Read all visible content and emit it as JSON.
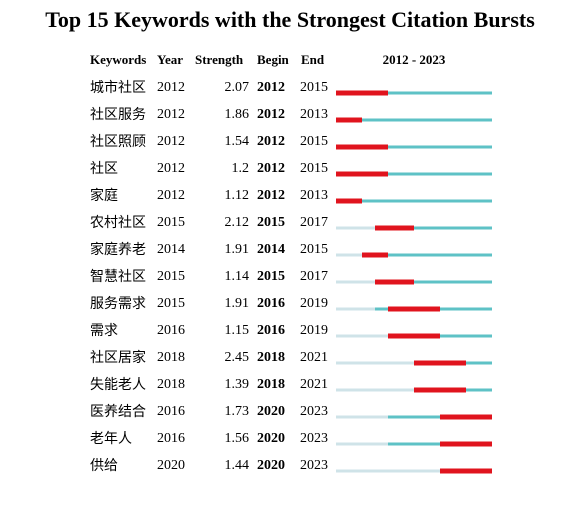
{
  "title": "Top 15 Keywords with the Strongest Citation Bursts",
  "columns": [
    "Keywords",
    "Year",
    "Strength",
    "Begin",
    "End"
  ],
  "timeline": {
    "label": "2012 - 2023",
    "xlim": [
      2012,
      2023
    ]
  },
  "rows": [
    {
      "keyword": "城市社区",
      "year": 2012,
      "strength": 2.07,
      "begin": 2012,
      "end": 2015
    },
    {
      "keyword": "社区服务",
      "year": 2012,
      "strength": 1.86,
      "begin": 2012,
      "end": 2013
    },
    {
      "keyword": "社区照顾",
      "year": 2012,
      "strength": 1.54,
      "begin": 2012,
      "end": 2015
    },
    {
      "keyword": "社区",
      "year": 2012,
      "strength": 1.2,
      "begin": 2012,
      "end": 2015
    },
    {
      "keyword": "家庭",
      "year": 2012,
      "strength": 1.12,
      "begin": 2012,
      "end": 2013
    },
    {
      "keyword": "农村社区",
      "year": 2015,
      "strength": 2.12,
      "begin": 2015,
      "end": 2017
    },
    {
      "keyword": "家庭养老",
      "year": 2014,
      "strength": 1.91,
      "begin": 2014,
      "end": 2015
    },
    {
      "keyword": "智慧社区",
      "year": 2015,
      "strength": 1.14,
      "begin": 2015,
      "end": 2017
    },
    {
      "keyword": "服务需求",
      "year": 2015,
      "strength": 1.91,
      "begin": 2016,
      "end": 2019
    },
    {
      "keyword": "需求",
      "year": 2016,
      "strength": 1.15,
      "begin": 2016,
      "end": 2019
    },
    {
      "keyword": "社区居家",
      "year": 2018,
      "strength": 2.45,
      "begin": 2018,
      "end": 2021
    },
    {
      "keyword": "失能老人",
      "year": 2018,
      "strength": 1.39,
      "begin": 2018,
      "end": 2021
    },
    {
      "keyword": "医养结合",
      "year": 2016,
      "strength": 1.73,
      "begin": 2020,
      "end": 2023
    },
    {
      "keyword": "老年人",
      "year": 2016,
      "strength": 1.56,
      "begin": 2020,
      "end": 2023
    },
    {
      "keyword": "供给",
      "year": 2020,
      "strength": 1.44,
      "begin": 2020,
      "end": 2023
    }
  ]
}
